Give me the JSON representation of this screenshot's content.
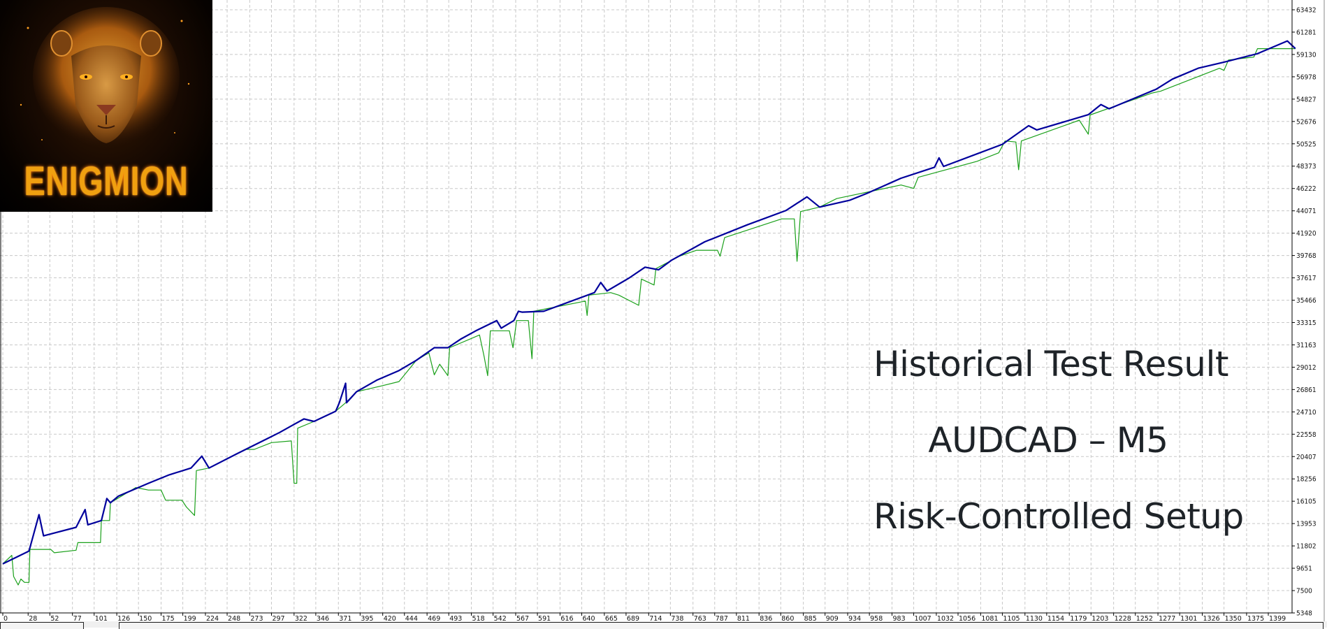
{
  "logo": {
    "text": "ENIGMION"
  },
  "overlay": {
    "line1": "Historical Test Result",
    "line2": "AUDCAD – M5",
    "line3": "Risk-Controlled Setup"
  },
  "chart_data": {
    "type": "line",
    "title": "",
    "xlabel": "",
    "ylabel": "",
    "grid": true,
    "y_axis_position": "right",
    "ylim": [
      5348,
      63432
    ],
    "xlim": [
      0,
      1425
    ],
    "x_ticks": [
      "0",
      "28",
      "52",
      "77",
      "101",
      "126",
      "150",
      "175",
      "199",
      "224",
      "248",
      "273",
      "297",
      "322",
      "346",
      "371",
      "395",
      "420",
      "444",
      "469",
      "493",
      "518",
      "542",
      "567",
      "591",
      "616",
      "640",
      "665",
      "689",
      "714",
      "738",
      "763",
      "787",
      "811",
      "836",
      "860",
      "885",
      "909",
      "934",
      "958",
      "983",
      "1007",
      "1032",
      "1056",
      "1081",
      "1105",
      "1130",
      "1154",
      "1179",
      "1203",
      "1228",
      "1252",
      "1277",
      "1301",
      "1326",
      "1350",
      "1375",
      "1399"
    ],
    "y_ticks": [
      "63432",
      "61281",
      "59130",
      "56978",
      "54827",
      "52676",
      "50525",
      "48373",
      "46222",
      "44071",
      "41920",
      "39768",
      "37617",
      "35466",
      "33315",
      "31163",
      "29012",
      "26861",
      "24710",
      "22558",
      "20407",
      "18256",
      "16105",
      "13953",
      "11802",
      "9651",
      "7500",
      "5348"
    ],
    "series": [
      {
        "color": "#00009c",
        "points": [
          [
            0,
            10081
          ],
          [
            29,
            11305
          ],
          [
            40,
            14814
          ],
          [
            45,
            12774
          ],
          [
            81,
            13590
          ],
          [
            91,
            15303
          ],
          [
            94,
            13835
          ],
          [
            109,
            14243
          ],
          [
            115,
            16364
          ],
          [
            119,
            15956
          ],
          [
            128,
            16609
          ],
          [
            161,
            17833
          ],
          [
            184,
            18649
          ],
          [
            208,
            19302
          ],
          [
            220,
            20444
          ],
          [
            228,
            19302
          ],
          [
            259,
            20689
          ],
          [
            278,
            21505
          ],
          [
            306,
            22729
          ],
          [
            321,
            23463
          ],
          [
            333,
            24035
          ],
          [
            344,
            23790
          ],
          [
            368,
            24769
          ],
          [
            372,
            25585
          ],
          [
            379,
            27462
          ],
          [
            380,
            25585
          ],
          [
            391,
            26646
          ],
          [
            414,
            27788
          ],
          [
            438,
            28686
          ],
          [
            457,
            29665
          ],
          [
            477,
            30889
          ],
          [
            492,
            30889
          ],
          [
            506,
            31705
          ],
          [
            523,
            32521
          ],
          [
            546,
            33500
          ],
          [
            551,
            32766
          ],
          [
            565,
            33500
          ],
          [
            570,
            34398
          ],
          [
            574,
            34316
          ],
          [
            598,
            34398
          ],
          [
            654,
            36193
          ],
          [
            661,
            37172
          ],
          [
            668,
            36356
          ],
          [
            692,
            37580
          ],
          [
            710,
            38641
          ],
          [
            725,
            38396
          ],
          [
            739,
            39294
          ],
          [
            776,
            41089
          ],
          [
            823,
            42721
          ],
          [
            866,
            44108
          ],
          [
            889,
            45414
          ],
          [
            903,
            44434
          ],
          [
            936,
            45087
          ],
          [
            955,
            45740
          ],
          [
            993,
            47209
          ],
          [
            1030,
            48270
          ],
          [
            1035,
            49167
          ],
          [
            1040,
            48351
          ],
          [
            1105,
            50473
          ],
          [
            1134,
            52268
          ],
          [
            1143,
            51860
          ],
          [
            1200,
            53329
          ],
          [
            1214,
            54308
          ],
          [
            1223,
            53900
          ],
          [
            1275,
            55777
          ],
          [
            1293,
            56756
          ],
          [
            1322,
            57817
          ],
          [
            1350,
            58388
          ],
          [
            1387,
            59204
          ],
          [
            1420,
            60428
          ],
          [
            1429,
            59693
          ]
        ]
      },
      {
        "color": "#1aa01a",
        "points": [
          [
            0,
            10081
          ],
          [
            10,
            10897
          ],
          [
            12,
            8857
          ],
          [
            17,
            8041
          ],
          [
            20,
            8612
          ],
          [
            24,
            8286
          ],
          [
            29,
            8286
          ],
          [
            30,
            11468
          ],
          [
            53,
            11468
          ],
          [
            57,
            11142
          ],
          [
            81,
            11387
          ],
          [
            83,
            12121
          ],
          [
            108,
            12121
          ],
          [
            109,
            14243
          ],
          [
            118,
            14243
          ],
          [
            119,
            15956
          ],
          [
            147,
            17425
          ],
          [
            161,
            17180
          ],
          [
            175,
            17180
          ],
          [
            180,
            16201
          ],
          [
            198,
            16201
          ],
          [
            203,
            15548
          ],
          [
            212,
            14732
          ],
          [
            214,
            19057
          ],
          [
            228,
            19302
          ],
          [
            268,
            21097
          ],
          [
            278,
            21097
          ],
          [
            297,
            21750
          ],
          [
            319,
            21913
          ],
          [
            322,
            17833
          ],
          [
            325,
            17833
          ],
          [
            326,
            23137
          ],
          [
            344,
            23790
          ],
          [
            368,
            24769
          ],
          [
            379,
            25585
          ],
          [
            391,
            26646
          ],
          [
            419,
            27217
          ],
          [
            438,
            27625
          ],
          [
            457,
            29665
          ],
          [
            471,
            30399
          ],
          [
            477,
            28279
          ],
          [
            483,
            29300
          ],
          [
            492,
            28197
          ],
          [
            494,
            30889
          ],
          [
            527,
            32113
          ],
          [
            532,
            30073
          ],
          [
            536,
            28197
          ],
          [
            539,
            32521
          ],
          [
            560,
            32521
          ],
          [
            564,
            30889
          ],
          [
            568,
            33500
          ],
          [
            581,
            33500
          ],
          [
            585,
            29828
          ],
          [
            587,
            34398
          ],
          [
            644,
            35377
          ],
          [
            646,
            33990
          ],
          [
            648,
            35950
          ],
          [
            672,
            36193
          ],
          [
            681,
            35950
          ],
          [
            703,
            34969
          ],
          [
            706,
            37500
          ],
          [
            720,
            36927
          ],
          [
            722,
            38500
          ],
          [
            748,
            39700
          ],
          [
            767,
            40272
          ],
          [
            790,
            40272
          ],
          [
            793,
            39701
          ],
          [
            798,
            41500
          ],
          [
            861,
            43292
          ],
          [
            875,
            43292
          ],
          [
            878,
            39211
          ],
          [
            882,
            44000
          ],
          [
            903,
            44434
          ],
          [
            922,
            45250
          ],
          [
            993,
            46557
          ],
          [
            1007,
            46230
          ],
          [
            1012,
            47300
          ],
          [
            1077,
            48841
          ],
          [
            1101,
            49657
          ],
          [
            1108,
            50800
          ],
          [
            1120,
            50700
          ],
          [
            1123,
            48025
          ],
          [
            1126,
            50800
          ],
          [
            1190,
            52800
          ],
          [
            1200,
            51452
          ],
          [
            1202,
            53300
          ],
          [
            1270,
            55400
          ],
          [
            1280,
            55600
          ],
          [
            1345,
            57800
          ],
          [
            1350,
            57600
          ],
          [
            1355,
            58600
          ],
          [
            1383,
            58878
          ],
          [
            1387,
            59693
          ],
          [
            1429,
            59693
          ]
        ]
      }
    ]
  }
}
